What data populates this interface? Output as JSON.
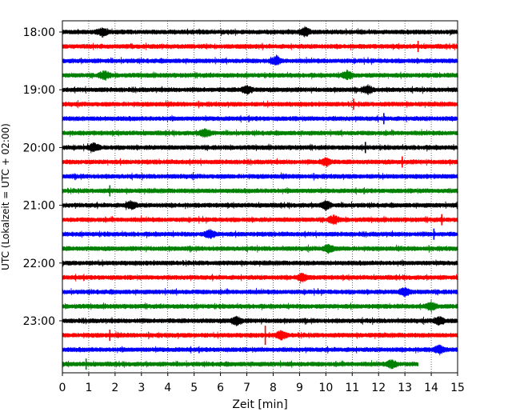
{
  "chart_data": {
    "type": "line",
    "title": "",
    "xlabel": "Zeit  [min]",
    "ylabel": "UTC (Lokalzeit = UTC + 02:00)",
    "xlim": [
      0,
      15
    ],
    "x_ticks": [
      "0",
      "1",
      "2",
      "3",
      "4",
      "5",
      "6",
      "7",
      "8",
      "9",
      "10",
      "11",
      "12",
      "13",
      "14",
      "15"
    ],
    "y_ticks": [
      "18:00",
      "19:00",
      "20:00",
      "21:00",
      "22:00",
      "23:00"
    ],
    "grid": "vertical dotted",
    "trace_colors": [
      "#000000",
      "#ff0000",
      "#0000ff",
      "#008000"
    ],
    "series": [
      {
        "start": "18:00",
        "x_end": 15,
        "color": "#000000"
      },
      {
        "start": "18:15",
        "x_end": 15,
        "color": "#ff0000"
      },
      {
        "start": "18:30",
        "x_end": 15,
        "color": "#0000ff"
      },
      {
        "start": "18:45",
        "x_end": 15,
        "color": "#008000"
      },
      {
        "start": "19:00",
        "x_end": 15,
        "color": "#000000"
      },
      {
        "start": "19:15",
        "x_end": 15,
        "color": "#ff0000"
      },
      {
        "start": "19:30",
        "x_end": 15,
        "color": "#0000ff"
      },
      {
        "start": "19:45",
        "x_end": 15,
        "color": "#008000"
      },
      {
        "start": "20:00",
        "x_end": 15,
        "color": "#000000"
      },
      {
        "start": "20:15",
        "x_end": 15,
        "color": "#ff0000"
      },
      {
        "start": "20:30",
        "x_end": 15,
        "color": "#0000ff"
      },
      {
        "start": "20:45",
        "x_end": 15,
        "color": "#008000"
      },
      {
        "start": "21:00",
        "x_end": 15,
        "color": "#000000"
      },
      {
        "start": "21:15",
        "x_end": 15,
        "color": "#ff0000"
      },
      {
        "start": "21:30",
        "x_end": 15,
        "color": "#0000ff"
      },
      {
        "start": "21:45",
        "x_end": 15,
        "color": "#008000"
      },
      {
        "start": "22:00",
        "x_end": 15,
        "color": "#000000"
      },
      {
        "start": "22:15",
        "x_end": 15,
        "color": "#ff0000"
      },
      {
        "start": "22:30",
        "x_end": 15,
        "color": "#0000ff"
      },
      {
        "start": "22:45",
        "x_end": 15,
        "color": "#008000"
      },
      {
        "start": "23:00",
        "x_end": 15,
        "color": "#000000"
      },
      {
        "start": "23:15",
        "x_end": 15,
        "color": "#ff0000"
      },
      {
        "start": "23:30",
        "x_end": 15,
        "color": "#0000ff"
      },
      {
        "start": "23:45",
        "x_end": 13.5,
        "color": "#008000"
      }
    ],
    "spikes": [
      {
        "trace": "18:15",
        "x": 13.5
      },
      {
        "trace": "19:15",
        "x": 11.05
      },
      {
        "trace": "19:30",
        "x": 12.2
      },
      {
        "trace": "20:00",
        "x": 11.5
      },
      {
        "trace": "20:15",
        "x": 12.9
      },
      {
        "trace": "20:45",
        "x": 1.8
      },
      {
        "trace": "21:15",
        "x": 14.4
      },
      {
        "trace": "21:30",
        "x": 14.1
      },
      {
        "trace": "23:15",
        "x": 7.7
      },
      {
        "trace": "23:15",
        "x": 1.8
      },
      {
        "trace": "23:45",
        "x": 0.9
      }
    ],
    "bursts": [
      {
        "trace": "18:00",
        "x": 1.5
      },
      {
        "trace": "18:00",
        "x": 9.2
      },
      {
        "trace": "18:30",
        "x": 8.1
      },
      {
        "trace": "18:45",
        "x": 1.6
      },
      {
        "trace": "18:45",
        "x": 10.8
      },
      {
        "trace": "19:00",
        "x": 7.0
      },
      {
        "trace": "19:00",
        "x": 11.6
      },
      {
        "trace": "19:45",
        "x": 5.4
      },
      {
        "trace": "20:00",
        "x": 1.2
      },
      {
        "trace": "20:15",
        "x": 10.0
      },
      {
        "trace": "21:00",
        "x": 2.6
      },
      {
        "trace": "21:00",
        "x": 10.0
      },
      {
        "trace": "21:15",
        "x": 10.3
      },
      {
        "trace": "21:30",
        "x": 5.6
      },
      {
        "trace": "21:45",
        "x": 10.1
      },
      {
        "trace": "22:15",
        "x": 9.1
      },
      {
        "trace": "22:30",
        "x": 13.0
      },
      {
        "trace": "22:45",
        "x": 14.0
      },
      {
        "trace": "23:00",
        "x": 6.6
      },
      {
        "trace": "23:00",
        "x": 14.3
      },
      {
        "trace": "23:15",
        "x": 8.3
      },
      {
        "trace": "23:30",
        "x": 14.3
      },
      {
        "trace": "23:45",
        "x": 12.5
      }
    ]
  }
}
